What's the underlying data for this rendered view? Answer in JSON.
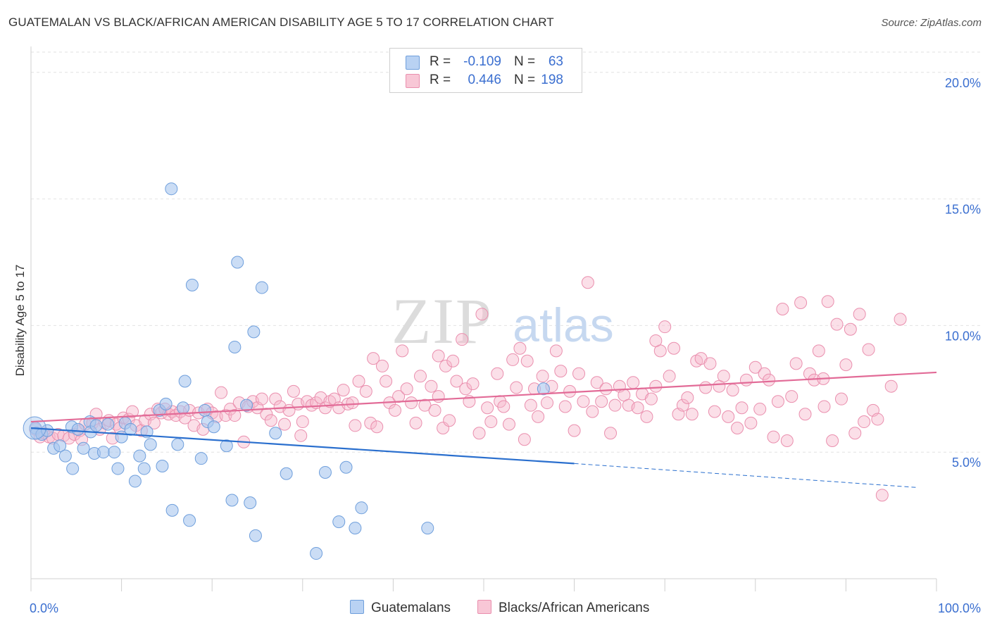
{
  "title": "GUATEMALAN VS BLACK/AFRICAN AMERICAN DISABILITY AGE 5 TO 17 CORRELATION CHART",
  "source": "Source: ZipAtlas.com",
  "watermark": {
    "zip": "ZIP",
    "atlas": "atlas"
  },
  "legend": {
    "r_label": "R =",
    "n_label": "N =",
    "guatemalan": {
      "r": "-0.109",
      "n": "63"
    },
    "black": {
      "r": "0.446",
      "n": "198"
    }
  },
  "colors": {
    "blue_fill": "#a9c7ef",
    "blue_stroke": "#6f9fdc",
    "blue_line": "#2a6fce",
    "pink_fill": "#f6b9cb",
    "pink_stroke": "#ea8fae",
    "pink_line": "#e26b97",
    "tick_label": "#3b6fd0",
    "grid": "#e2e2e2"
  },
  "chart_data": {
    "type": "scatter",
    "title": "GUATEMALAN VS BLACK/AFRICAN AMERICAN DISABILITY AGE 5 TO 17 CORRELATION CHART",
    "xlabel": "",
    "ylabel": "Disability Age 5 to 17",
    "xlim": [
      0,
      100
    ],
    "ylim": [
      0,
      20.8
    ],
    "x_tick_labels": {
      "left": "0.0%",
      "right": "100.0%"
    },
    "y_ticks": [
      {
        "value": 5,
        "label": "5.0%"
      },
      {
        "value": 10,
        "label": "10.0%"
      },
      {
        "value": 15,
        "label": "15.0%"
      },
      {
        "value": 20,
        "label": "20.0%"
      }
    ],
    "series": [
      {
        "name": "Guatemalans",
        "color": "blue",
        "trend": {
          "x0": 0,
          "y0": 5.95,
          "x1": 60,
          "y1": 4.55,
          "dash_to_x": 98,
          "dash_to_y": 3.6
        },
        "points": [
          [
            0.5,
            5.95
          ],
          [
            0.6,
            5.75
          ],
          [
            1.2,
            5.7
          ],
          [
            1.8,
            5.85
          ],
          [
            2.5,
            5.15
          ],
          [
            3.2,
            5.25
          ],
          [
            3.8,
            4.85
          ],
          [
            4.5,
            6.0
          ],
          [
            4.6,
            4.35
          ],
          [
            5.2,
            5.9
          ],
          [
            5.8,
            5.15
          ],
          [
            6.5,
            6.2
          ],
          [
            6.6,
            5.8
          ],
          [
            7.0,
            4.95
          ],
          [
            7.2,
            6.05
          ],
          [
            8.0,
            5.0
          ],
          [
            8.5,
            6.1
          ],
          [
            9.2,
            5.0
          ],
          [
            9.6,
            4.35
          ],
          [
            10.0,
            5.6
          ],
          [
            10.4,
            6.15
          ],
          [
            11.0,
            5.9
          ],
          [
            11.5,
            3.85
          ],
          [
            12.0,
            4.85
          ],
          [
            12.5,
            4.35
          ],
          [
            12.8,
            5.8
          ],
          [
            13.2,
            5.3
          ],
          [
            14.2,
            6.65
          ],
          [
            14.5,
            4.45
          ],
          [
            14.9,
            6.9
          ],
          [
            15.5,
            15.4
          ],
          [
            15.6,
            2.7
          ],
          [
            16.2,
            5.3
          ],
          [
            16.8,
            6.75
          ],
          [
            17.0,
            7.8
          ],
          [
            17.5,
            2.3
          ],
          [
            17.8,
            11.6
          ],
          [
            18.8,
            4.75
          ],
          [
            19.2,
            6.65
          ],
          [
            19.5,
            6.2
          ],
          [
            20.2,
            6.0
          ],
          [
            21.6,
            5.25
          ],
          [
            22.2,
            3.1
          ],
          [
            22.5,
            9.15
          ],
          [
            22.8,
            12.5
          ],
          [
            23.8,
            6.85
          ],
          [
            24.2,
            3.0
          ],
          [
            24.6,
            9.75
          ],
          [
            24.8,
            1.7
          ],
          [
            25.5,
            11.5
          ],
          [
            27.0,
            5.75
          ],
          [
            28.2,
            4.15
          ],
          [
            31.5,
            1.0
          ],
          [
            32.5,
            4.2
          ],
          [
            34.0,
            2.25
          ],
          [
            34.8,
            4.4
          ],
          [
            35.8,
            2.0
          ],
          [
            36.5,
            2.8
          ],
          [
            43.8,
            2.0
          ],
          [
            56.6,
            7.5
          ]
        ]
      },
      {
        "name": "Blacks/African Americans",
        "color": "pink",
        "trend": {
          "x0": 0,
          "y0": 6.2,
          "x1": 100,
          "y1": 8.15
        },
        "points": [
          [
            0.5,
            5.9
          ],
          [
            1.0,
            5.6
          ],
          [
            1.4,
            5.75
          ],
          [
            2.0,
            5.6
          ],
          [
            2.4,
            5.55
          ],
          [
            3.0,
            5.7
          ],
          [
            3.6,
            5.65
          ],
          [
            4.2,
            5.55
          ],
          [
            4.8,
            5.7
          ],
          [
            5.4,
            5.85
          ],
          [
            5.6,
            5.5
          ],
          [
            6.0,
            6.1
          ],
          [
            6.8,
            6.15
          ],
          [
            7.2,
            6.5
          ],
          [
            7.6,
            5.9
          ],
          [
            8.2,
            6.15
          ],
          [
            8.6,
            6.25
          ],
          [
            9.0,
            5.55
          ],
          [
            9.4,
            6.1
          ],
          [
            9.8,
            5.95
          ],
          [
            10.2,
            6.35
          ],
          [
            10.8,
            6.3
          ],
          [
            11.2,
            6.6
          ],
          [
            11.6,
            6.05
          ],
          [
            12.2,
            5.85
          ],
          [
            12.6,
            6.25
          ],
          [
            13.2,
            6.5
          ],
          [
            13.6,
            6.15
          ],
          [
            14.0,
            6.7
          ],
          [
            14.4,
            6.55
          ],
          [
            14.8,
            6.7
          ],
          [
            15.2,
            6.5
          ],
          [
            15.6,
            6.6
          ],
          [
            16.0,
            6.45
          ],
          [
            16.5,
            6.6
          ],
          [
            17.0,
            6.35
          ],
          [
            17.5,
            6.65
          ],
          [
            18.0,
            6.05
          ],
          [
            18.5,
            6.55
          ],
          [
            19.0,
            5.9
          ],
          [
            19.5,
            6.7
          ],
          [
            20.0,
            6.55
          ],
          [
            20.5,
            6.4
          ],
          [
            21.0,
            7.35
          ],
          [
            21.5,
            6.45
          ],
          [
            22.0,
            6.7
          ],
          [
            22.5,
            6.45
          ],
          [
            23.0,
            6.95
          ],
          [
            23.5,
            5.4
          ],
          [
            24.0,
            6.8
          ],
          [
            24.5,
            7.0
          ],
          [
            25.0,
            6.75
          ],
          [
            25.5,
            7.1
          ],
          [
            26.0,
            6.5
          ],
          [
            26.5,
            6.25
          ],
          [
            27.0,
            7.1
          ],
          [
            27.5,
            6.8
          ],
          [
            28.0,
            6.1
          ],
          [
            28.5,
            6.65
          ],
          [
            29.0,
            7.4
          ],
          [
            29.5,
            6.9
          ],
          [
            29.8,
            5.65
          ],
          [
            30.5,
            7.0
          ],
          [
            31.0,
            6.85
          ],
          [
            31.5,
            6.95
          ],
          [
            32.0,
            7.15
          ],
          [
            32.5,
            6.75
          ],
          [
            33.0,
            7.0
          ],
          [
            33.5,
            7.1
          ],
          [
            34.0,
            6.75
          ],
          [
            34.5,
            7.45
          ],
          [
            35.0,
            6.9
          ],
          [
            35.5,
            6.95
          ],
          [
            35.8,
            6.05
          ],
          [
            36.2,
            7.8
          ],
          [
            37.0,
            7.4
          ],
          [
            37.5,
            6.15
          ],
          [
            37.8,
            8.7
          ],
          [
            38.2,
            6.0
          ],
          [
            38.8,
            8.4
          ],
          [
            39.2,
            7.8
          ],
          [
            39.6,
            6.95
          ],
          [
            40.2,
            6.65
          ],
          [
            40.6,
            7.2
          ],
          [
            41.0,
            9.0
          ],
          [
            41.5,
            7.5
          ],
          [
            42.0,
            6.95
          ],
          [
            42.5,
            6.15
          ],
          [
            43.0,
            8.0
          ],
          [
            43.5,
            6.85
          ],
          [
            44.2,
            7.6
          ],
          [
            44.6,
            6.65
          ],
          [
            45.0,
            7.2
          ],
          [
            45.5,
            5.95
          ],
          [
            45.8,
            8.4
          ],
          [
            46.2,
            6.25
          ],
          [
            46.6,
            8.6
          ],
          [
            47.0,
            7.8
          ],
          [
            47.6,
            9.45
          ],
          [
            48.0,
            7.5
          ],
          [
            48.4,
            7.0
          ],
          [
            48.8,
            7.7
          ],
          [
            49.5,
            5.75
          ],
          [
            49.8,
            10.45
          ],
          [
            50.4,
            6.75
          ],
          [
            50.8,
            6.2
          ],
          [
            51.5,
            8.1
          ],
          [
            51.8,
            7.0
          ],
          [
            52.2,
            6.8
          ],
          [
            52.8,
            6.1
          ],
          [
            53.2,
            8.65
          ],
          [
            53.6,
            7.55
          ],
          [
            54.0,
            9.1
          ],
          [
            54.5,
            5.5
          ],
          [
            54.8,
            8.6
          ],
          [
            55.2,
            6.85
          ],
          [
            55.6,
            7.5
          ],
          [
            56.0,
            6.4
          ],
          [
            56.5,
            8.0
          ],
          [
            57.0,
            6.95
          ],
          [
            57.5,
            7.6
          ],
          [
            58.0,
            9.0
          ],
          [
            58.5,
            8.2
          ],
          [
            59.0,
            6.8
          ],
          [
            59.5,
            7.4
          ],
          [
            60.0,
            5.85
          ],
          [
            60.5,
            8.1
          ],
          [
            61.0,
            7.0
          ],
          [
            61.5,
            11.7
          ],
          [
            62.0,
            6.6
          ],
          [
            62.5,
            7.75
          ],
          [
            63.0,
            7.0
          ],
          [
            63.5,
            7.5
          ],
          [
            64.0,
            5.75
          ],
          [
            64.5,
            6.85
          ],
          [
            65.0,
            7.6
          ],
          [
            65.5,
            7.25
          ],
          [
            66.0,
            6.85
          ],
          [
            66.5,
            7.75
          ],
          [
            67.0,
            6.75
          ],
          [
            67.5,
            7.3
          ],
          [
            68.0,
            6.4
          ],
          [
            68.5,
            7.1
          ],
          [
            69.0,
            7.6
          ],
          [
            69.5,
            9.0
          ],
          [
            70.0,
            9.95
          ],
          [
            70.5,
            8.0
          ],
          [
            71.0,
            9.1
          ],
          [
            71.5,
            6.5
          ],
          [
            72.0,
            6.85
          ],
          [
            72.5,
            7.15
          ],
          [
            73.0,
            6.5
          ],
          [
            73.5,
            8.6
          ],
          [
            74.0,
            8.7
          ],
          [
            74.5,
            7.55
          ],
          [
            75.0,
            8.5
          ],
          [
            75.5,
            6.6
          ],
          [
            76.0,
            7.6
          ],
          [
            76.5,
            8.0
          ],
          [
            77.0,
            6.4
          ],
          [
            77.5,
            7.45
          ],
          [
            78.0,
            5.95
          ],
          [
            78.5,
            6.75
          ],
          [
            79.0,
            7.85
          ],
          [
            79.5,
            6.15
          ],
          [
            80.0,
            8.35
          ],
          [
            80.5,
            6.7
          ],
          [
            81.0,
            8.1
          ],
          [
            81.5,
            7.85
          ],
          [
            82.0,
            5.6
          ],
          [
            82.5,
            7.0
          ],
          [
            83.0,
            10.65
          ],
          [
            83.5,
            5.45
          ],
          [
            84.0,
            7.2
          ],
          [
            84.5,
            8.5
          ],
          [
            85.0,
            10.9
          ],
          [
            85.5,
            6.5
          ],
          [
            86.0,
            8.1
          ],
          [
            86.5,
            7.85
          ],
          [
            87.0,
            9.0
          ],
          [
            87.5,
            7.9
          ],
          [
            88.0,
            10.95
          ],
          [
            88.5,
            5.45
          ],
          [
            89.0,
            10.05
          ],
          [
            89.5,
            7.1
          ],
          [
            90.0,
            8.45
          ],
          [
            90.5,
            9.85
          ],
          [
            91.0,
            5.75
          ],
          [
            91.5,
            10.45
          ],
          [
            92.0,
            6.2
          ],
          [
            92.5,
            9.05
          ],
          [
            93.0,
            6.65
          ],
          [
            93.5,
            6.3
          ],
          [
            94.0,
            3.3
          ],
          [
            95.0,
            7.6
          ],
          [
            96.0,
            10.25
          ],
          [
            87.6,
            6.8
          ],
          [
            45.0,
            8.8
          ],
          [
            69.0,
            9.4
          ],
          [
            30.0,
            6.2
          ]
        ]
      }
    ]
  },
  "bottom_legend": {
    "guatemalan": "Guatemalans",
    "black": "Blacks/African Americans"
  }
}
